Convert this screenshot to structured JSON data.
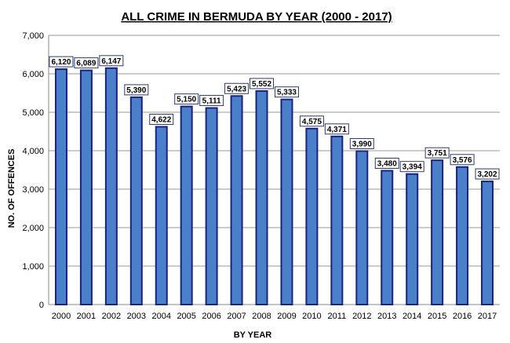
{
  "chart_data": {
    "type": "bar",
    "title": "ALL CRIME IN BERMUDA BY YEAR (2000 - 2017)",
    "xlabel": "BY YEAR",
    "ylabel": "NO. OF OFFENCES",
    "categories": [
      "2000",
      "2001",
      "2002",
      "2003",
      "2004",
      "2005",
      "2006",
      "2007",
      "2008",
      "2009",
      "2010",
      "2011",
      "2012",
      "2013",
      "2014",
      "2015",
      "2016",
      "2017"
    ],
    "values": [
      6120,
      6089,
      6147,
      5390,
      4622,
      5150,
      5111,
      5423,
      5552,
      5333,
      4575,
      4371,
      3990,
      3480,
      3394,
      3751,
      3576,
      3202
    ],
    "data_labels": [
      "6,120",
      "6,089",
      "6,147",
      "5,390",
      "4,622",
      "5,150",
      "5,111",
      "5,423",
      "5,552",
      "5,333",
      "4,575",
      "4,371",
      "3,990",
      "3,480",
      "3,394",
      "3,751",
      "3,576",
      "3,202"
    ],
    "y_ticks": [
      0,
      1000,
      2000,
      3000,
      4000,
      5000,
      6000,
      7000
    ],
    "y_tick_labels": [
      "0",
      "1,000",
      "2,000",
      "3,000",
      "4,000",
      "5,000",
      "6,000",
      "7,000"
    ],
    "ylim": [
      0,
      7000
    ],
    "grid": true,
    "legend": "none",
    "colors": {
      "bar_fill": "#4a7fc9",
      "bar_stroke": "#1a237e",
      "grid": "#999999",
      "label_box_fill": "#ffffff",
      "label_box_stroke": "#2e3a6e"
    }
  }
}
